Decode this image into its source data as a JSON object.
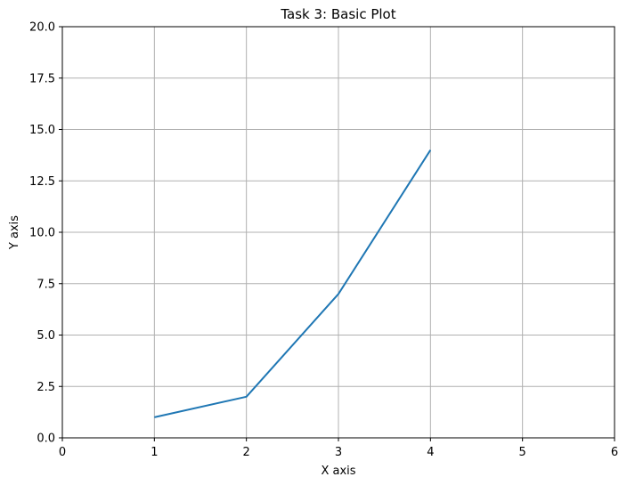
{
  "chart_data": {
    "type": "line",
    "title": "Task 3: Basic Plot",
    "xlabel": "X axis",
    "ylabel": "Y axis",
    "xlim": [
      0,
      6
    ],
    "ylim": [
      0,
      20
    ],
    "x_ticks": [
      0,
      1,
      2,
      3,
      4,
      5,
      6
    ],
    "y_ticks": [
      0,
      2.5,
      5,
      7.5,
      10,
      12.5,
      15,
      17.5,
      20
    ],
    "x_tick_labels": [
      "0",
      "1",
      "2",
      "3",
      "4",
      "5",
      "6"
    ],
    "y_tick_labels": [
      "0.0",
      "2.5",
      "5.0",
      "7.5",
      "10.0",
      "12.5",
      "15.0",
      "17.5",
      "20.0"
    ],
    "grid": true,
    "series": [
      {
        "x": [
          1,
          2,
          3,
          4
        ],
        "y": [
          1,
          2,
          7,
          14
        ],
        "color": "#1f77b4"
      }
    ]
  }
}
